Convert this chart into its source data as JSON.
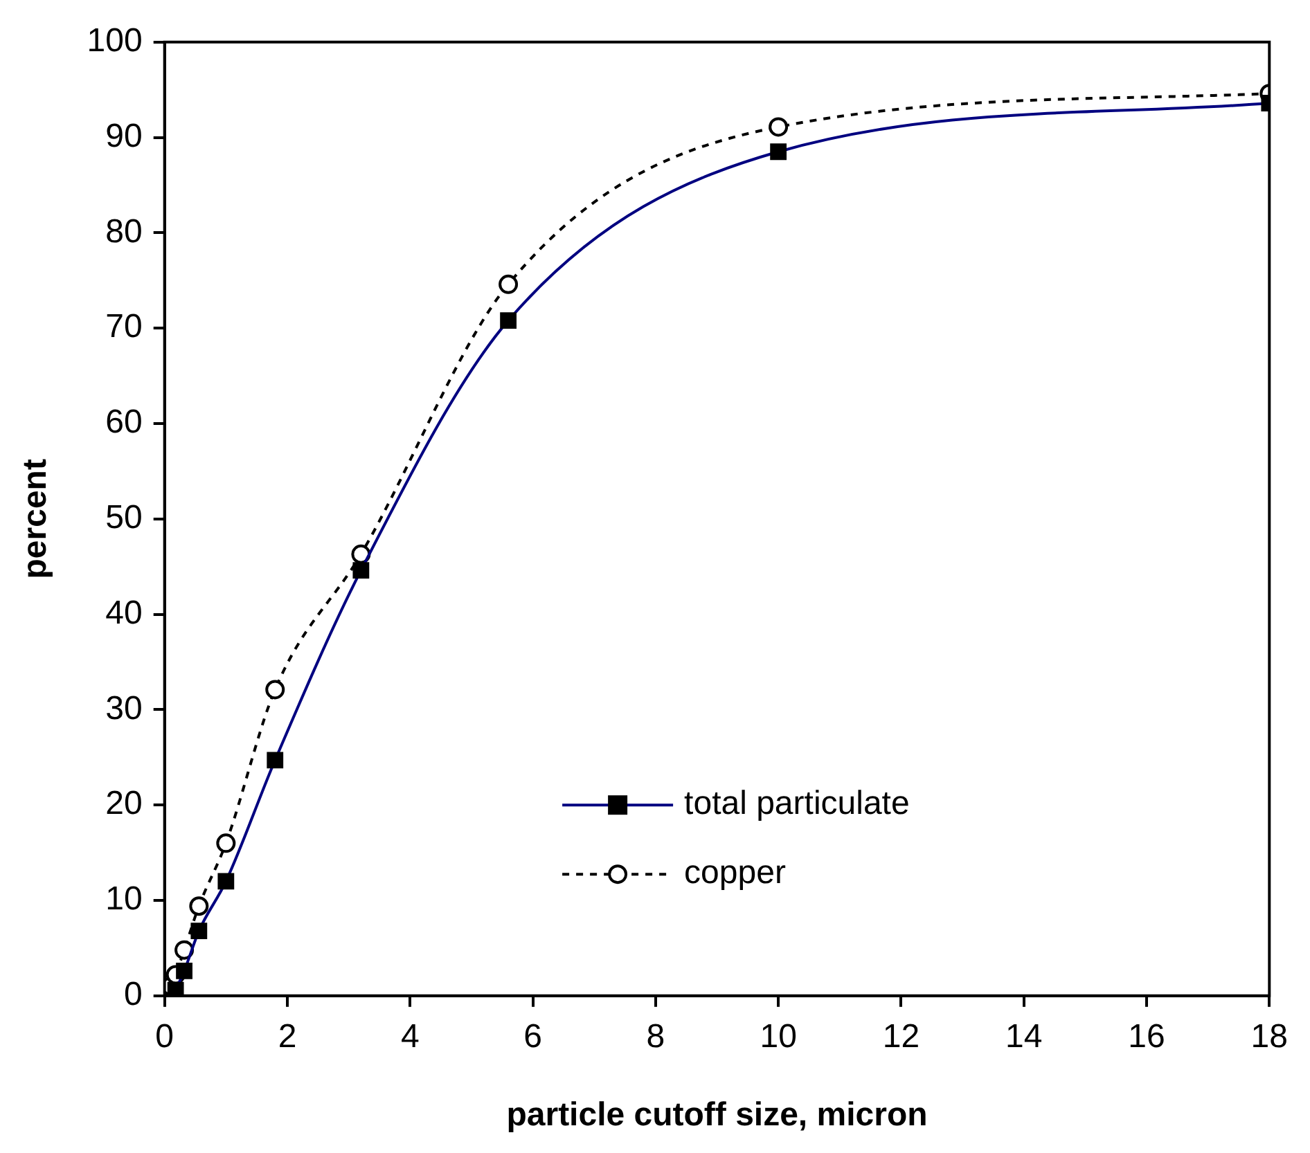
{
  "chart_data": {
    "type": "line",
    "xlabel": "particle cutoff size, micron",
    "ylabel": "percent",
    "x": [
      0.1,
      0.18,
      0.32,
      0.56,
      1.0,
      1.8,
      3.2,
      5.6,
      10,
      18
    ],
    "series": [
      {
        "name": "total particulate",
        "color": "#000080",
        "values": [
          null,
          0.6,
          2.6,
          6.8,
          12.0,
          24.7,
          44.6,
          70.8,
          88.5,
          93.6
        ],
        "marker": "square",
        "line_style": "solid"
      },
      {
        "name": "copper",
        "color": "#000000",
        "values": [
          1.0,
          2.2,
          4.8,
          9.4,
          16.0,
          32.1,
          46.3,
          74.6,
          91.1,
          94.6
        ],
        "marker": "circle",
        "line_style": "dashed"
      }
    ],
    "xlim": [
      0,
      18
    ],
    "xticks": [
      0,
      2,
      4,
      6,
      8,
      10,
      12,
      14,
      16,
      18
    ],
    "ylim": [
      0,
      100
    ],
    "yticks": [
      0,
      10,
      20,
      30,
      40,
      50,
      60,
      70,
      80,
      90,
      100
    ],
    "grid": false,
    "legend": "bottom right"
  }
}
